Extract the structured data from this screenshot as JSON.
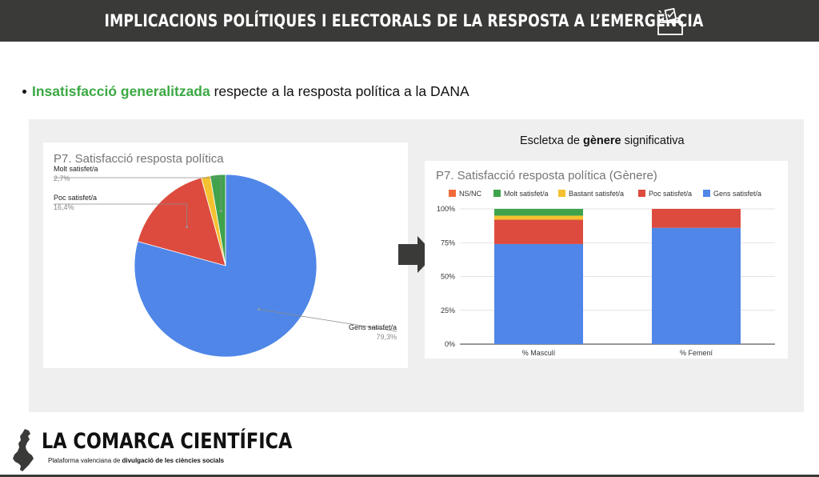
{
  "header": {
    "title": "IMPLICACIONS POLÍTIQUES I ELECTORALS DE LA RESPOSTA A L’EMERGÈNCIA",
    "icon": "ballot-box-icon"
  },
  "bullet": {
    "highlight": "Insatisfacció generalitzada",
    "rest": " respecte a la resposta política a la DANA",
    "highlight_color": "#3ba843"
  },
  "subtitle": {
    "prefix": "Escletxa de ",
    "bold": "gènere",
    "suffix": " significativa"
  },
  "chart_data": [
    {
      "type": "pie",
      "title": "P7. Satisfacció resposta política",
      "slices": [
        {
          "label": "Gens satisfet/a",
          "value": 79.3,
          "display": "79,3%",
          "color": "#4f86e8"
        },
        {
          "label": "Poc satisfet/a",
          "value": 16.4,
          "display": "16,4%",
          "color": "#dd4b3f"
        },
        {
          "label": "Bastant satisfet/a",
          "value": 1.6,
          "display": "",
          "color": "#f4c230"
        },
        {
          "label": "Molt satisfet/a",
          "value": 2.7,
          "display": "2,7%",
          "color": "#3fa34c"
        }
      ]
    },
    {
      "type": "bar",
      "stacked": true,
      "title": "P7. Satisfacció resposta política (Gènere)",
      "categories": [
        "% Masculí",
        "% Femení"
      ],
      "ylim": [
        0,
        100
      ],
      "yticks": [
        "0%",
        "25%",
        "50%",
        "75%",
        "100%"
      ],
      "legend_position": "top",
      "series": [
        {
          "name": "NS/NC",
          "color": "#f26b3a",
          "values": [
            0,
            0
          ]
        },
        {
          "name": "Molt satisfet/a",
          "color": "#3fa34c",
          "values": [
            5,
            0
          ]
        },
        {
          "name": "Bastant satisfet/a",
          "color": "#f4c230",
          "values": [
            3,
            0
          ]
        },
        {
          "name": "Poc satisfet/a",
          "color": "#dd4b3f",
          "values": [
            18,
            14
          ]
        },
        {
          "name": "Gens satisfet/a",
          "color": "#4f86e8",
          "values": [
            74,
            86
          ]
        }
      ]
    }
  ],
  "footer": {
    "brand": "LA COMARCA CIENTÍFICA",
    "tagline_prefix": "Plataforma valenciana de ",
    "tagline_bold": "divulgació de les ciències socials"
  }
}
